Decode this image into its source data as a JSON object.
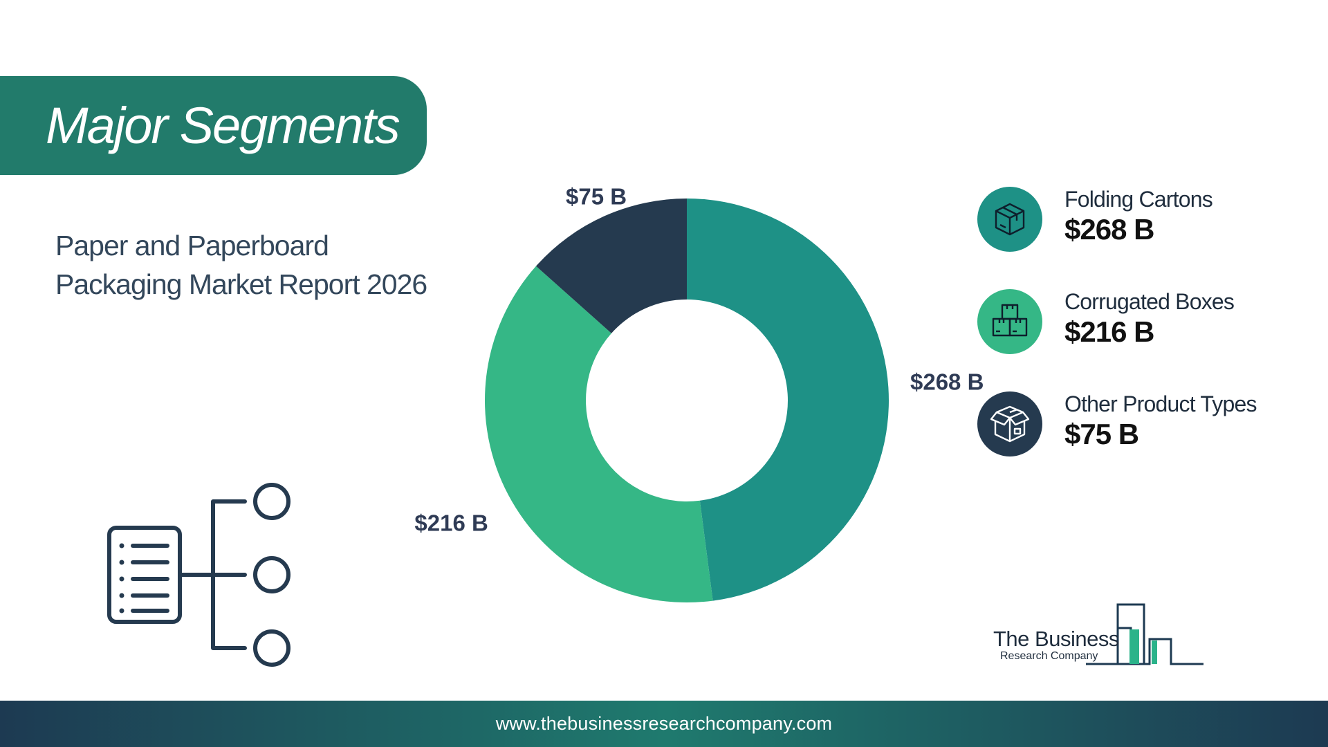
{
  "banner": {
    "title": "Major Segments"
  },
  "report": {
    "line1": "Paper and Paperboard",
    "line2": "Packaging Market Report 2026"
  },
  "chart_data": {
    "type": "pie",
    "variant": "donut",
    "categories": [
      "Folding Cartons",
      "Corrugated Boxes",
      "Other Product Types"
    ],
    "values": [
      268,
      216,
      75
    ],
    "unit": "$ B",
    "data_labels": [
      "$268 B",
      "$216 B",
      "$75 B"
    ],
    "colors": [
      "#1e9186",
      "#35b786",
      "#253a4f"
    ],
    "legend_placement": "right"
  },
  "legend": {
    "items": [
      {
        "name": "Folding Cartons",
        "value": "$268 B",
        "color": "#1e9186",
        "icon": "box-icon"
      },
      {
        "name": "Corrugated Boxes",
        "value": "$216 B",
        "color": "#35b786",
        "icon": "stacked-boxes-icon"
      },
      {
        "name": "Other Product Types",
        "value": "$75 B",
        "color": "#253a4f",
        "icon": "open-box-icon"
      }
    ]
  },
  "logo": {
    "name": "The Business",
    "sub": "Research Company"
  },
  "footer": {
    "url": "www.thebusinessresearchcompany.com"
  }
}
